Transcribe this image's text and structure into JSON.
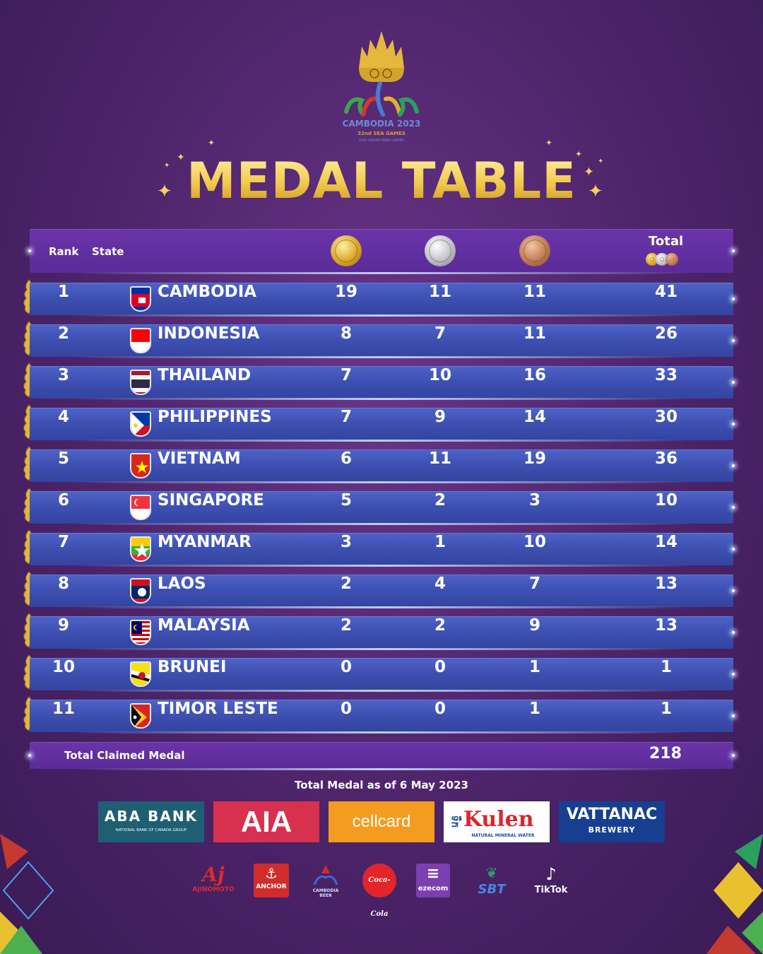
{
  "logo": {
    "line1": "CAMBODIA 2023",
    "line2": "32nd SEA GAMES",
    "line3": "12th ASEAN PARA GAMES"
  },
  "title": "MEDAL TABLE",
  "header": {
    "rank": "Rank",
    "state": "State",
    "total": "Total"
  },
  "rows": [
    {
      "rank": "1",
      "country": "CAMBODIA",
      "gold": "19",
      "silver": "11",
      "bronze": "11",
      "total": "41",
      "flag": "cambodia"
    },
    {
      "rank": "2",
      "country": "INDONESIA",
      "gold": "8",
      "silver": "7",
      "bronze": "11",
      "total": "26",
      "flag": "indonesia"
    },
    {
      "rank": "3",
      "country": "THAILAND",
      "gold": "7",
      "silver": "10",
      "bronze": "16",
      "total": "33",
      "flag": "thailand"
    },
    {
      "rank": "4",
      "country": "PHILIPPINES",
      "gold": "7",
      "silver": "9",
      "bronze": "14",
      "total": "30",
      "flag": "philippines"
    },
    {
      "rank": "5",
      "country": "VIETNAM",
      "gold": "6",
      "silver": "11",
      "bronze": "19",
      "total": "36",
      "flag": "vietnam"
    },
    {
      "rank": "6",
      "country": "SINGAPORE",
      "gold": "5",
      "silver": "2",
      "bronze": "3",
      "total": "10",
      "flag": "singapore"
    },
    {
      "rank": "7",
      "country": "MYANMAR",
      "gold": "3",
      "silver": "1",
      "bronze": "10",
      "total": "14",
      "flag": "myanmar"
    },
    {
      "rank": "8",
      "country": "LAOS",
      "gold": "2",
      "silver": "4",
      "bronze": "7",
      "total": "13",
      "flag": "laos"
    },
    {
      "rank": "9",
      "country": "MALAYSIA",
      "gold": "2",
      "silver": "2",
      "bronze": "9",
      "total": "13",
      "flag": "malaysia"
    },
    {
      "rank": "10",
      "country": "BRUNEI",
      "gold": "0",
      "silver": "0",
      "bronze": "1",
      "total": "1",
      "flag": "brunei"
    },
    {
      "rank": "11",
      "country": "TIMOR LESTE",
      "gold": "0",
      "silver": "0",
      "bronze": "1",
      "total": "1",
      "flag": "timor-leste"
    }
  ],
  "footer": {
    "label": "Total Claimed Medal",
    "total": "218",
    "as_of": "Total Medal as of 6 May 2023"
  },
  "sponsors": {
    "aba_main": "ABA",
    "aba_bank": "BANK",
    "aba_sub": "NATIONAL BANK OF CANADA GROUP",
    "aia": "AIA",
    "cellcard": "cellcard",
    "kulen": "Kulen",
    "kulen_side": "ទឹក",
    "kulen_sub": "NATURAL MINERAL WATER",
    "vattanac": "VATTANAC",
    "vattanac_sub": "BREWERY",
    "ajinomoto_main": "Aj",
    "ajinomoto": "AJINOMOTO",
    "anchor": "ANCHOR",
    "cambodia_beer": "CAMBODIA BEER",
    "cocacola": "Coca-Cola",
    "ezecom": "ezecom",
    "sbt": "SBT",
    "tiktok": "TikTok"
  },
  "colors": {
    "bar": "#3d4fb0",
    "header_bar": "#5a2b98",
    "title_gold": "#f0c94a",
    "background": "#4c2469"
  }
}
